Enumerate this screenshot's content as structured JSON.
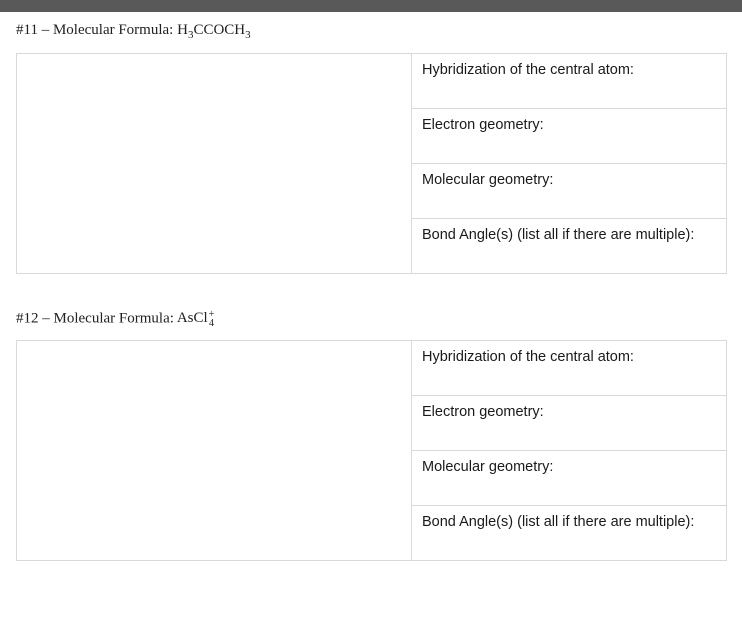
{
  "questions": [
    {
      "number": "#11",
      "label_prefix": " – Molecular Formula: ",
      "formula_html": "H<span class=\"formula-sub\">3</span>CCOCH<span class=\"formula-sub\">3</span>",
      "rows": [
        "Hybridization of the central atom:",
        "Electron geometry:",
        "Molecular geometry:",
        "Bond Angle(s) (list all if there are multiple):"
      ]
    },
    {
      "number": "#12",
      "label_prefix": " – Molecular Formula: ",
      "formula_html": "AsCl<span class=\"sup-sub-stack\">+<br>4</span>",
      "rows": [
        "Hybridization of the central atom:",
        "Electron geometry:",
        "Molecular geometry:",
        "Bond Angle(s) (list all if there are multiple):"
      ]
    }
  ],
  "colors": {
    "topbar": "#595959",
    "border": "#d9d9d9",
    "text": "#212121",
    "background": "#ffffff"
  }
}
